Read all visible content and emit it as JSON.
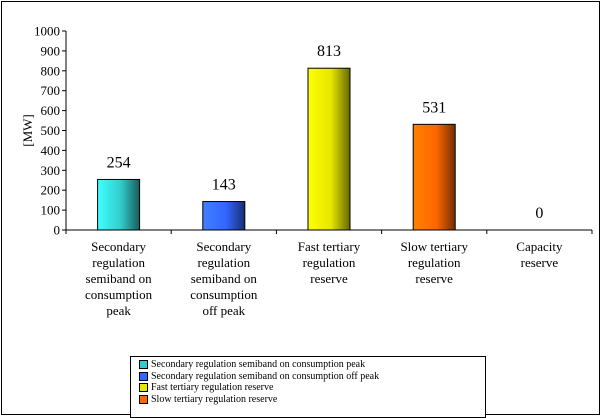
{
  "chart_data": {
    "type": "bar",
    "ylabel": "[MW]",
    "ylim": [
      0,
      1000
    ],
    "yticks": [
      0,
      100,
      200,
      300,
      400,
      500,
      600,
      700,
      800,
      900,
      1000
    ],
    "categories": [
      "Secondary regulation semiband on consumption peak",
      "Secondary regulation semiband on consumption off peak",
      "Fast tertiary regulation reserve",
      "Slow tertiary regulation reserve",
      "Capacity reserve"
    ],
    "category_lines": [
      [
        "Secondary",
        "regulation",
        "semiband on",
        "consumption",
        "peak"
      ],
      [
        "Secondary",
        "regulation",
        "semiband on",
        "consumption",
        "off peak"
      ],
      [
        "Fast tertiary",
        "regulation",
        "reserve"
      ],
      [
        "Slow tertiary",
        "regulation",
        "reserve"
      ],
      [
        "Capacity",
        "reserve"
      ]
    ],
    "values": [
      254,
      143,
      813,
      531,
      0
    ],
    "data_labels": [
      "254",
      "143",
      "813",
      "531",
      "0"
    ],
    "colors": [
      "#33cccc",
      "#3366ff",
      "#e6e600",
      "#ff6600",
      "#999999"
    ],
    "legend": [
      "Secondary regulation semiband on consumption peak",
      "Secondary regulation semiband on consumption off peak",
      "Fast tertiary regulation reserve",
      "Slow tertiary regulation reserve"
    ],
    "grid": false,
    "legend_position": "bottom"
  }
}
